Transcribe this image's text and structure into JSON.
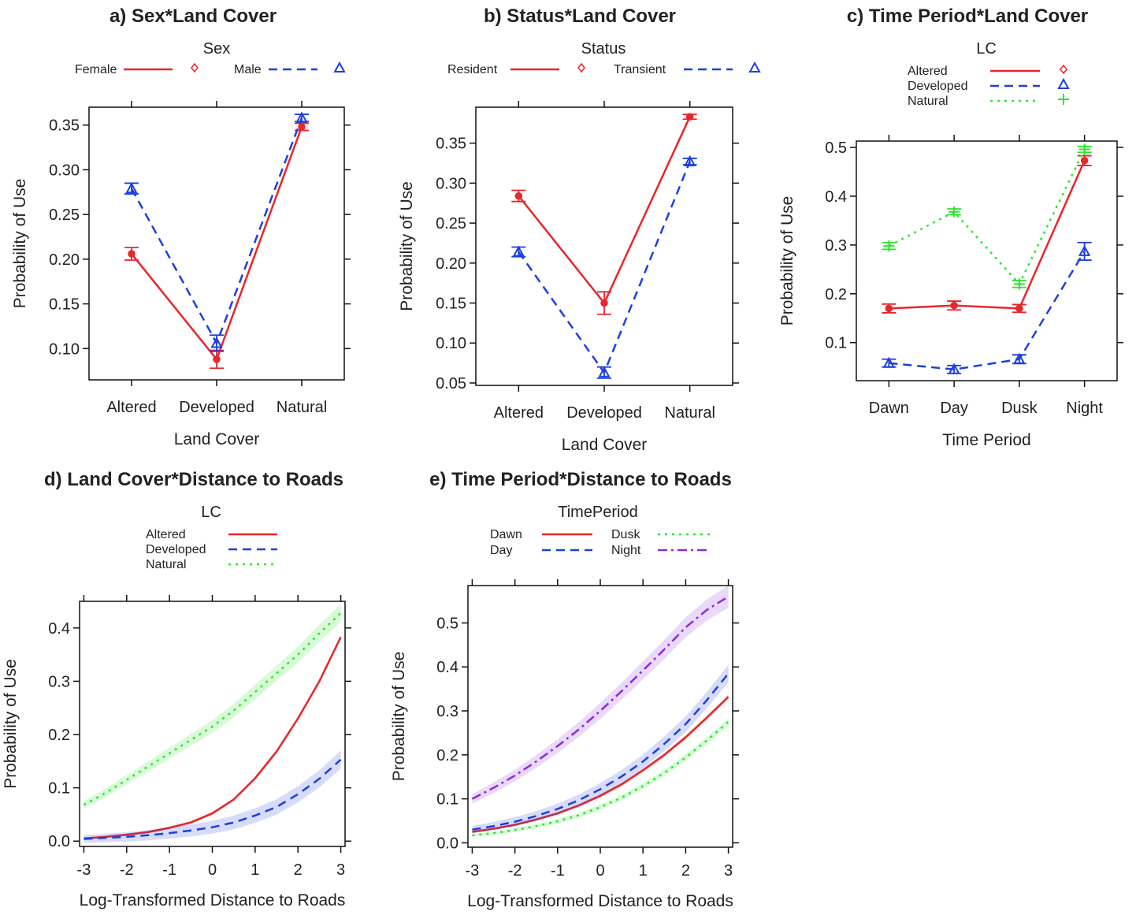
{
  "colors": {
    "red": "#e8262b",
    "blue": "#1c3fe0",
    "green": "#2fe62f",
    "purple": "#8a2be2"
  },
  "chart_data": [
    {
      "type": "line",
      "title": "a) Sex*Land Cover",
      "legend_title": "Sex",
      "legend_placement": "top",
      "xlabel": "Land Cover",
      "ylabel": "Probability of Use",
      "categories": [
        "Altered",
        "Developed",
        "Natural"
      ],
      "ylim": [
        0.065,
        0.37
      ],
      "yticks": [
        0.1,
        0.15,
        0.2,
        0.25,
        0.3,
        0.35
      ],
      "ytick_labels": [
        "0.10",
        "0.15",
        "0.20",
        "0.25",
        "0.30",
        "0.35"
      ],
      "series": [
        {
          "name": "Female",
          "color": "red",
          "dash": "solid",
          "marker": "circle",
          "values": [
            0.206,
            0.088,
            0.348
          ],
          "err": [
            0.007,
            0.01,
            0.004
          ]
        },
        {
          "name": "Male",
          "color": "blue",
          "dash": "dashed",
          "marker": "triangle",
          "values": [
            0.279,
            0.106,
            0.358
          ],
          "err": [
            0.006,
            0.009,
            0.004
          ]
        }
      ]
    },
    {
      "type": "line",
      "title": "b) Status*Land Cover",
      "legend_title": "Status",
      "legend_placement": "top",
      "xlabel": "Land Cover",
      "ylabel": "Probability of Use",
      "categories": [
        "Altered",
        "Developed",
        "Natural"
      ],
      "ylim": [
        0.047,
        0.395
      ],
      "yticks": [
        0.05,
        0.1,
        0.15,
        0.2,
        0.25,
        0.3,
        0.35
      ],
      "ytick_labels": [
        "0.05",
        "0.10",
        "0.15",
        "0.20",
        "0.25",
        "0.30",
        "0.35"
      ],
      "series": [
        {
          "name": "Resident",
          "color": "red",
          "dash": "solid",
          "marker": "circle",
          "values": [
            0.284,
            0.15,
            0.383
          ],
          "err": [
            0.007,
            0.014,
            0.003
          ]
        },
        {
          "name": "Transient",
          "color": "blue",
          "dash": "dashed",
          "marker": "triangle",
          "values": [
            0.214,
            0.063,
            0.327
          ],
          "err": [
            0.006,
            0.007,
            0.004
          ]
        }
      ]
    },
    {
      "type": "line",
      "title": "c) Time Period*Land Cover",
      "legend_title": "LC",
      "legend_placement": "top",
      "xlabel": "Time Period",
      "ylabel": "Probability of Use",
      "categories": [
        "Dawn",
        "Day",
        "Dusk",
        "Night"
      ],
      "ylim": [
        0.022,
        0.513
      ],
      "yticks": [
        0.1,
        0.2,
        0.3,
        0.4,
        0.5
      ],
      "ytick_labels": [
        "0.1",
        "0.2",
        "0.3",
        "0.4",
        "0.5"
      ],
      "series": [
        {
          "name": "Altered",
          "color": "red",
          "dash": "solid",
          "marker": "circle",
          "values": [
            0.17,
            0.176,
            0.17,
            0.473
          ],
          "err": [
            0.009,
            0.009,
            0.008,
            0.01
          ]
        },
        {
          "name": "Developed",
          "color": "blue",
          "dash": "dashed",
          "marker": "triangle",
          "values": [
            0.058,
            0.045,
            0.066,
            0.287
          ],
          "err": [
            0.008,
            0.008,
            0.009,
            0.018
          ]
        },
        {
          "name": "Natural",
          "color": "green",
          "dash": "dotted",
          "marker": "plus",
          "values": [
            0.298,
            0.368,
            0.22,
            0.496
          ],
          "err": [
            0.007,
            0.006,
            0.007,
            0.006
          ]
        }
      ]
    },
    {
      "type": "line",
      "title": "d) Land Cover*Distance to Roads",
      "legend_title": "LC",
      "legend_placement": "top",
      "xlabel": "Log-Transformed Distance to Roads",
      "ylabel": "Probability of Use",
      "xlim": [
        -3.1,
        3.1
      ],
      "xticks": [
        -3,
        -2,
        -1,
        0,
        1,
        2,
        3
      ],
      "xtick_labels": [
        "-3",
        "-2",
        "-1",
        "0",
        "1",
        "2",
        "3"
      ],
      "ylim": [
        -0.01,
        0.45
      ],
      "yticks": [
        0.0,
        0.1,
        0.2,
        0.3,
        0.4
      ],
      "ytick_labels": [
        "0.0",
        "0.1",
        "0.2",
        "0.3",
        "0.4"
      ],
      "x": [
        -3,
        -2.5,
        -2,
        -1.5,
        -1,
        -0.5,
        0,
        0.5,
        1,
        1.5,
        2,
        2.5,
        3
      ],
      "series": [
        {
          "name": "Altered",
          "color": "red",
          "dash": "solid",
          "band": 0.003,
          "values": [
            0.005,
            0.008,
            0.012,
            0.017,
            0.025,
            0.035,
            0.052,
            0.078,
            0.118,
            0.168,
            0.23,
            0.3,
            0.383
          ]
        },
        {
          "name": "Developed",
          "color": "blue",
          "dash": "dashed",
          "band": 0.012,
          "values": [
            0.004,
            0.006,
            0.008,
            0.011,
            0.015,
            0.02,
            0.026,
            0.035,
            0.048,
            0.064,
            0.088,
            0.117,
            0.153
          ]
        },
        {
          "name": "Natural",
          "color": "green",
          "dash": "dotted",
          "band": 0.012,
          "values": [
            0.068,
            0.09,
            0.115,
            0.14,
            0.165,
            0.19,
            0.215,
            0.245,
            0.28,
            0.315,
            0.35,
            0.39,
            0.428
          ]
        }
      ]
    },
    {
      "type": "line",
      "title": "e) Time Period*Distance to Roads",
      "legend_title": "TimePeriod",
      "legend_placement": "top",
      "xlabel": "Log-Transformed Distance to Roads",
      "ylabel": "Probability of Use",
      "xlim": [
        -3.1,
        3.1
      ],
      "xticks": [
        -3,
        -2,
        -1,
        0,
        1,
        2,
        3
      ],
      "xtick_labels": [
        "-3",
        "-2",
        "-1",
        "0",
        "1",
        "2",
        "3"
      ],
      "ylim": [
        -0.01,
        0.585
      ],
      "yticks": [
        0.0,
        0.1,
        0.2,
        0.3,
        0.4,
        0.5
      ],
      "ytick_labels": [
        "0.0",
        "0.1",
        "0.2",
        "0.3",
        "0.4",
        "0.5"
      ],
      "x": [
        -3,
        -2.5,
        -2,
        -1.5,
        -1,
        -0.5,
        0,
        0.5,
        1,
        1.5,
        2,
        2.5,
        3
      ],
      "series": [
        {
          "name": "Dawn",
          "color": "red",
          "dash": "solid",
          "band": 0.004,
          "values": [
            0.025,
            0.032,
            0.041,
            0.053,
            0.067,
            0.085,
            0.107,
            0.133,
            0.165,
            0.2,
            0.24,
            0.285,
            0.332
          ]
        },
        {
          "name": "Day",
          "color": "blue",
          "dash": "dashed",
          "band": 0.014,
          "values": [
            0.03,
            0.038,
            0.048,
            0.061,
            0.077,
            0.097,
            0.122,
            0.151,
            0.185,
            0.225,
            0.27,
            0.325,
            0.385
          ]
        },
        {
          "name": "Dusk",
          "color": "green",
          "dash": "dotted",
          "band": 0.006,
          "values": [
            0.017,
            0.022,
            0.029,
            0.038,
            0.049,
            0.063,
            0.081,
            0.103,
            0.129,
            0.159,
            0.194,
            0.233,
            0.275
          ]
        },
        {
          "name": "Night",
          "color": "purple",
          "dash": "dotdash",
          "band": 0.018,
          "values": [
            0.1,
            0.125,
            0.153,
            0.185,
            0.22,
            0.258,
            0.3,
            0.345,
            0.392,
            0.44,
            0.49,
            0.53,
            0.56
          ]
        }
      ]
    }
  ]
}
